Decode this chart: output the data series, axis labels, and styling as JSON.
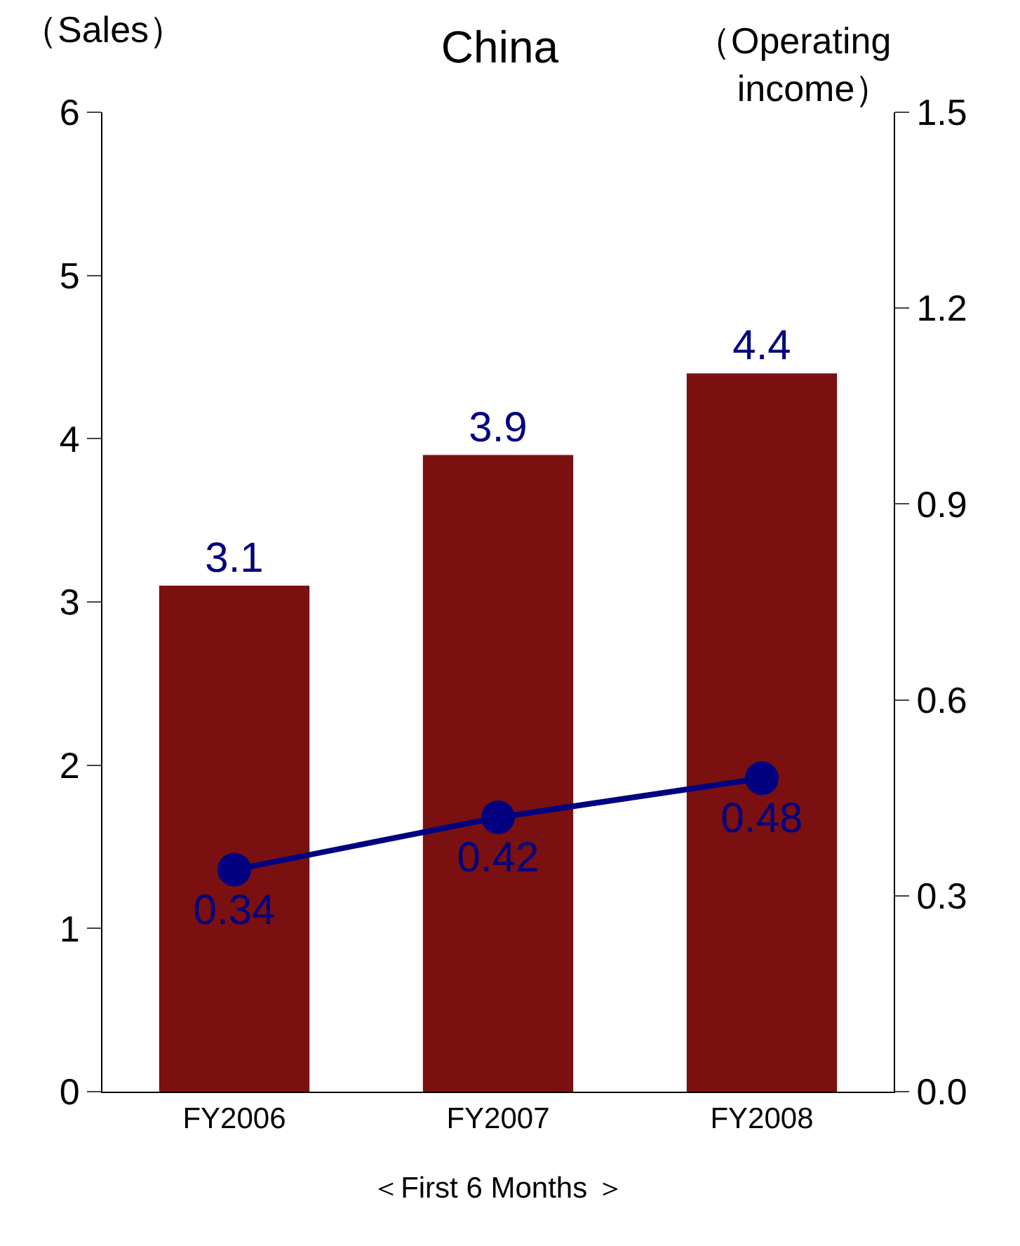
{
  "chart_data": {
    "type": "bar",
    "title": "China",
    "xlabel": "＜First 6 Months ＞",
    "ylabel": "（Sales）",
    "y2label": "（Operating income）",
    "categories": [
      "FY2006",
      "FY2007",
      "FY2008"
    ],
    "series": [
      {
        "color": "#7b1010",
        "values": [
          3.1,
          3.9,
          4.4
        ]
      },
      {
        "type": "line",
        "axis": "y2",
        "color": "#000080",
        "values": [
          0.34,
          0.42,
          0.48
        ],
        "marker": "circle",
        "line_style": "solid"
      }
    ],
    "ylim": [
      0,
      6
    ],
    "yticks": [
      0,
      1,
      2,
      3,
      4,
      5,
      6
    ],
    "y2lim": [
      0,
      1.5
    ],
    "y2ticks": [
      {
        "value": 0,
        "label": "0.0"
      },
      0.3,
      0.6,
      0.9,
      1.2,
      1.5
    ],
    "data_labels": true
  }
}
